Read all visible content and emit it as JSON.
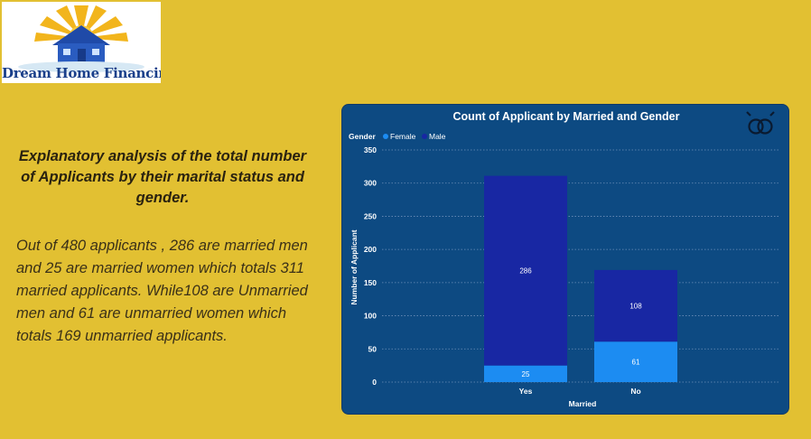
{
  "logo": {
    "text": "Dream Home Financing"
  },
  "heading": "Explanatory analysis of the total number of Applicants by their marital status and gender.",
  "body": "Out of 480 applicants , 286 are married men and 25 are married women which totals 311 married applicants. While108 are Unmarried men and 61 are unmarried women which totals 169 unmarried applicants.",
  "colors": {
    "page_bg": "#e2c032",
    "panel_bg": "#0d4a82",
    "female": "#1c8cf2",
    "male": "#1827a3"
  },
  "icons": {
    "chart_corner": "gender-symbol-icon",
    "logo": "house-sun-icon"
  },
  "chart_data": {
    "type": "bar",
    "stacked": true,
    "title": "Count of Applicant by Married and Gender",
    "xlabel": "Married",
    "ylabel": "Number of Applicant",
    "legend_title": "Gender",
    "legend_position": "top-left",
    "categories": [
      "Yes",
      "No"
    ],
    "series": [
      {
        "name": "Female",
        "values": [
          25,
          61
        ]
      },
      {
        "name": "Male",
        "values": [
          286,
          108
        ]
      }
    ],
    "ylim": [
      0,
      350
    ],
    "yticks": [
      0,
      50,
      100,
      150,
      200,
      250,
      300,
      350
    ],
    "grid": true,
    "data_labels": true
  }
}
